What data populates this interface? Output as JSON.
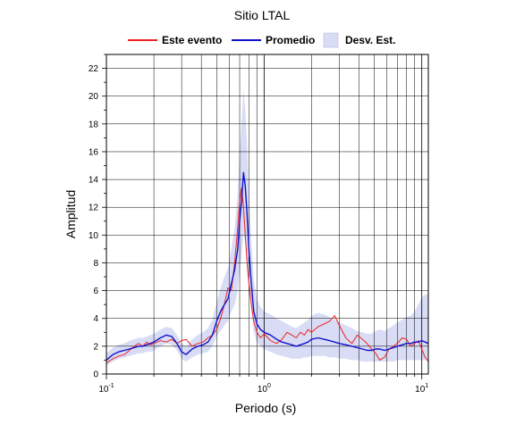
{
  "chart_data": {
    "type": "line",
    "title": "Sitio LTAL",
    "xlabel": "Periodo (s)",
    "ylabel": "Amplitud",
    "x_scale": "log",
    "xlim": [
      0.1,
      11
    ],
    "ylim": [
      0,
      23
    ],
    "grid": true,
    "legend_position": "top",
    "x_tick_labels": [
      {
        "value": 0.1,
        "base": "10",
        "exp": "-1"
      },
      {
        "value": 1,
        "base": "10",
        "exp": "0"
      },
      {
        "value": 10,
        "base": "10",
        "exp": "1"
      }
    ],
    "y_ticks": [
      0,
      2,
      4,
      6,
      8,
      10,
      12,
      14,
      16,
      18,
      20,
      22
    ],
    "legend": [
      {
        "label": "Este evento",
        "kind": "line",
        "color": "#ee2222"
      },
      {
        "label": "Promedio",
        "kind": "line",
        "color": "#1111cc"
      },
      {
        "label": "Desv. Est.",
        "kind": "band",
        "color": "#d8dcf5"
      }
    ],
    "series": [
      {
        "name": "Este evento",
        "color": "#ee2222",
        "x": [
          0.1,
          0.11,
          0.12,
          0.13,
          0.14,
          0.15,
          0.16,
          0.17,
          0.18,
          0.19,
          0.2,
          0.22,
          0.24,
          0.26,
          0.28,
          0.3,
          0.32,
          0.35,
          0.38,
          0.41,
          0.44,
          0.47,
          0.5,
          0.53,
          0.56,
          0.59,
          0.62,
          0.65,
          0.68,
          0.7,
          0.72,
          0.74,
          0.76,
          0.78,
          0.8,
          0.83,
          0.86,
          0.9,
          0.95,
          1.0,
          1.1,
          1.2,
          1.3,
          1.4,
          1.5,
          1.6,
          1.7,
          1.8,
          1.9,
          2.0,
          2.2,
          2.4,
          2.6,
          2.8,
          3.0,
          3.3,
          3.6,
          3.9,
          4.2,
          4.5,
          4.8,
          5.1,
          5.4,
          5.8,
          6.2,
          6.6,
          7.0,
          7.5,
          8.0,
          8.5,
          9.0,
          9.5,
          10.0,
          10.5,
          11.0
        ],
        "y": [
          0.8,
          1.1,
          1.3,
          1.4,
          1.7,
          2.0,
          2.2,
          2.0,
          2.3,
          2.1,
          2.2,
          2.4,
          2.3,
          2.5,
          2.2,
          2.4,
          2.5,
          2.0,
          2.2,
          2.3,
          2.6,
          2.8,
          3.2,
          4.0,
          5.0,
          6.2,
          6.0,
          8.0,
          10.5,
          12.5,
          13.4,
          12.0,
          10.0,
          8.0,
          6.5,
          5.0,
          3.8,
          3.0,
          2.6,
          2.9,
          2.4,
          2.2,
          2.5,
          3.0,
          2.8,
          2.6,
          3.0,
          2.8,
          3.2,
          3.0,
          3.4,
          3.6,
          3.8,
          4.2,
          3.5,
          2.6,
          2.2,
          2.8,
          2.5,
          2.2,
          1.8,
          1.5,
          1.0,
          1.2,
          1.8,
          2.0,
          2.2,
          2.6,
          2.5,
          2.0,
          2.2,
          2.4,
          1.8,
          1.2,
          0.9
        ]
      },
      {
        "name": "Promedio",
        "color": "#1111cc",
        "x": [
          0.1,
          0.11,
          0.12,
          0.13,
          0.14,
          0.15,
          0.16,
          0.17,
          0.18,
          0.19,
          0.2,
          0.22,
          0.24,
          0.26,
          0.28,
          0.3,
          0.32,
          0.35,
          0.38,
          0.41,
          0.44,
          0.47,
          0.5,
          0.53,
          0.56,
          0.59,
          0.62,
          0.65,
          0.68,
          0.7,
          0.72,
          0.74,
          0.76,
          0.78,
          0.8,
          0.83,
          0.86,
          0.9,
          0.95,
          1.0,
          1.1,
          1.2,
          1.3,
          1.4,
          1.5,
          1.6,
          1.7,
          1.8,
          1.9,
          2.0,
          2.2,
          2.4,
          2.6,
          2.8,
          3.0,
          3.3,
          3.6,
          3.9,
          4.2,
          4.5,
          4.8,
          5.1,
          5.4,
          5.8,
          6.2,
          6.6,
          7.0,
          7.5,
          8.0,
          8.5,
          9.0,
          9.5,
          10.0,
          10.5,
          11.0
        ],
        "y": [
          1.0,
          1.4,
          1.6,
          1.7,
          1.8,
          1.9,
          2.0,
          2.0,
          2.1,
          2.2,
          2.3,
          2.6,
          2.8,
          2.7,
          2.2,
          1.6,
          1.4,
          1.8,
          2.0,
          2.1,
          2.3,
          2.8,
          3.8,
          4.5,
          5.0,
          5.4,
          6.5,
          7.5,
          9.0,
          11.0,
          12.5,
          14.5,
          13.5,
          11.5,
          9.0,
          6.5,
          4.5,
          3.6,
          3.2,
          3.0,
          2.8,
          2.5,
          2.3,
          2.2,
          2.1,
          2.0,
          2.1,
          2.2,
          2.3,
          2.5,
          2.6,
          2.5,
          2.4,
          2.3,
          2.2,
          2.1,
          2.0,
          1.9,
          1.8,
          1.7,
          1.7,
          1.8,
          1.8,
          1.7,
          1.8,
          1.9,
          2.0,
          2.1,
          2.2,
          2.2,
          2.3,
          2.3,
          2.4,
          2.3,
          2.2
        ]
      }
    ],
    "std_band": {
      "name": "Desv. Est.",
      "color": "#d8dcf5",
      "x": [
        0.1,
        0.11,
        0.12,
        0.13,
        0.14,
        0.15,
        0.16,
        0.17,
        0.18,
        0.19,
        0.2,
        0.22,
        0.24,
        0.26,
        0.28,
        0.3,
        0.32,
        0.35,
        0.38,
        0.41,
        0.44,
        0.47,
        0.5,
        0.53,
        0.56,
        0.59,
        0.62,
        0.65,
        0.68,
        0.7,
        0.72,
        0.74,
        0.76,
        0.78,
        0.8,
        0.83,
        0.86,
        0.9,
        0.95,
        1.0,
        1.1,
        1.2,
        1.3,
        1.4,
        1.5,
        1.6,
        1.7,
        1.8,
        1.9,
        2.0,
        2.2,
        2.4,
        2.6,
        2.8,
        3.0,
        3.3,
        3.6,
        3.9,
        4.2,
        4.5,
        4.8,
        5.1,
        5.4,
        5.8,
        6.2,
        6.6,
        7.0,
        7.5,
        8.0,
        8.5,
        9.0,
        9.5,
        10.0,
        10.5,
        11.0
      ],
      "upper": [
        1.5,
        1.9,
        2.1,
        2.2,
        2.4,
        2.5,
        2.6,
        2.6,
        2.7,
        2.8,
        2.9,
        3.2,
        3.4,
        3.3,
        2.8,
        2.2,
        2.0,
        2.5,
        2.8,
        3.0,
        3.3,
        3.9,
        5.2,
        6.2,
        7.0,
        7.6,
        9.0,
        10.5,
        13.0,
        16.0,
        18.0,
        20.5,
        19.0,
        16.5,
        13.0,
        9.5,
        6.8,
        5.4,
        4.8,
        4.5,
        4.3,
        4.0,
        3.8,
        3.6,
        3.4,
        3.3,
        3.5,
        3.7,
        3.9,
        4.2,
        4.4,
        4.3,
        4.1,
        3.9,
        3.7,
        3.5,
        3.3,
        3.1,
        3.0,
        2.9,
        2.9,
        3.1,
        3.2,
        3.1,
        3.3,
        3.5,
        3.7,
        3.9,
        4.1,
        4.2,
        4.5,
        5.0,
        5.5,
        5.7,
        5.8
      ],
      "lower": [
        0.6,
        0.9,
        1.1,
        1.2,
        1.3,
        1.4,
        1.5,
        1.5,
        1.6,
        1.6,
        1.7,
        2.0,
        2.2,
        2.1,
        1.7,
        1.1,
        0.9,
        1.2,
        1.4,
        1.5,
        1.6,
        2.0,
        2.7,
        3.1,
        3.5,
        3.8,
        4.5,
        5.0,
        6.0,
        7.5,
        8.5,
        10.0,
        9.5,
        8.0,
        6.5,
        4.6,
        3.0,
        2.3,
        2.0,
        1.8,
        1.6,
        1.4,
        1.3,
        1.2,
        1.1,
        1.1,
        1.1,
        1.2,
        1.2,
        1.3,
        1.3,
        1.3,
        1.2,
        1.2,
        1.1,
        1.1,
        1.0,
        1.0,
        0.9,
        0.9,
        0.9,
        0.9,
        0.9,
        0.9,
        0.9,
        0.9,
        1.0,
        1.0,
        1.0,
        1.0,
        1.0,
        1.0,
        1.0,
        1.0,
        1.0
      ]
    }
  }
}
